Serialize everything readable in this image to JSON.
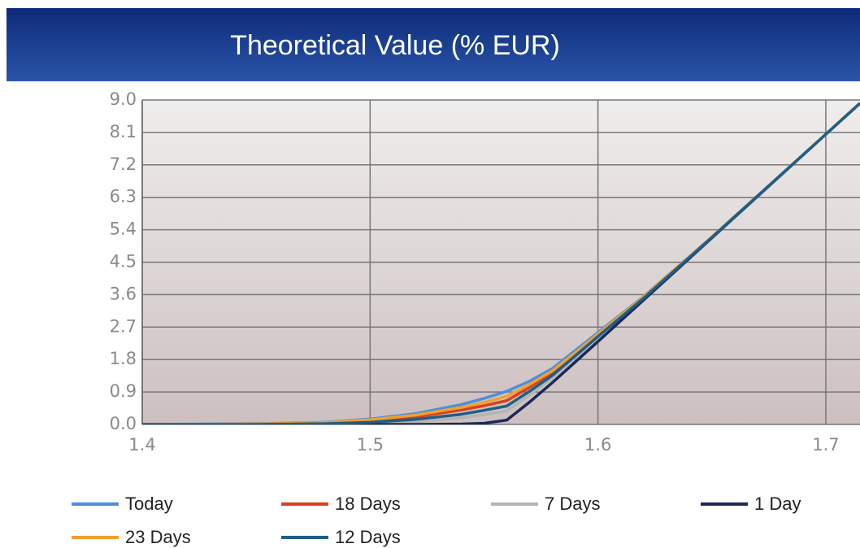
{
  "chart_data": {
    "type": "line",
    "title": "Theoretical Value (% EUR)",
    "x": [
      1.4,
      1.45,
      1.48,
      1.5,
      1.52,
      1.54,
      1.55,
      1.56,
      1.57,
      1.58,
      1.59,
      1.6,
      1.62,
      1.65,
      1.7,
      1.715
    ],
    "series": [
      {
        "name": "Today",
        "color": "#4a8fdc",
        "values": [
          0,
          0.02,
          0.06,
          0.15,
          0.3,
          0.55,
          0.72,
          0.92,
          1.2,
          1.55,
          2.05,
          2.55,
          3.55,
          5.2,
          8.05,
          8.91
        ]
      },
      {
        "name": "18 Days",
        "color": "#d8401c",
        "values": [
          0,
          0.01,
          0.04,
          0.1,
          0.21,
          0.4,
          0.52,
          0.66,
          1.03,
          1.44,
          1.96,
          2.48,
          3.52,
          5.19,
          8.05,
          8.91
        ]
      },
      {
        "name": "7 Days",
        "color": "#b4b4b4",
        "values": [
          0,
          0,
          0.01,
          0.03,
          0.08,
          0.18,
          0.27,
          0.37,
          0.82,
          1.29,
          1.85,
          2.4,
          3.49,
          5.18,
          8.05,
          8.91
        ]
      },
      {
        "name": "1 Day",
        "color": "#1b2858",
        "values": [
          0,
          0,
          0,
          0,
          0,
          0.01,
          0.03,
          0.12,
          0.62,
          1.16,
          1.73,
          2.3,
          3.45,
          5.175,
          8.05,
          8.91
        ]
      },
      {
        "name": "23 Days",
        "color": "#f0a030",
        "values": [
          0,
          0.01,
          0.05,
          0.13,
          0.26,
          0.47,
          0.61,
          0.78,
          1.11,
          1.49,
          1.99,
          2.51,
          3.54,
          5.2,
          8.05,
          8.91
        ]
      },
      {
        "name": "12 Days",
        "color": "#1f5f86",
        "values": [
          0,
          0,
          0.02,
          0.06,
          0.14,
          0.28,
          0.39,
          0.51,
          0.92,
          1.36,
          1.9,
          2.44,
          3.5,
          5.19,
          8.05,
          8.91
        ]
      }
    ],
    "xlim": [
      1.4,
      1.715
    ],
    "xticks": [
      1.4,
      1.5,
      1.6,
      1.7
    ],
    "ylim": [
      0,
      9
    ],
    "yticks": [
      {
        "value": 0,
        "label": "0.0"
      },
      0.9,
      1.8,
      2.7,
      3.6,
      4.5,
      5.4,
      6.3,
      7.2,
      8.1,
      {
        "value": 9,
        "label": "9.0"
      }
    ],
    "grid": true,
    "legend": "bottom"
  }
}
